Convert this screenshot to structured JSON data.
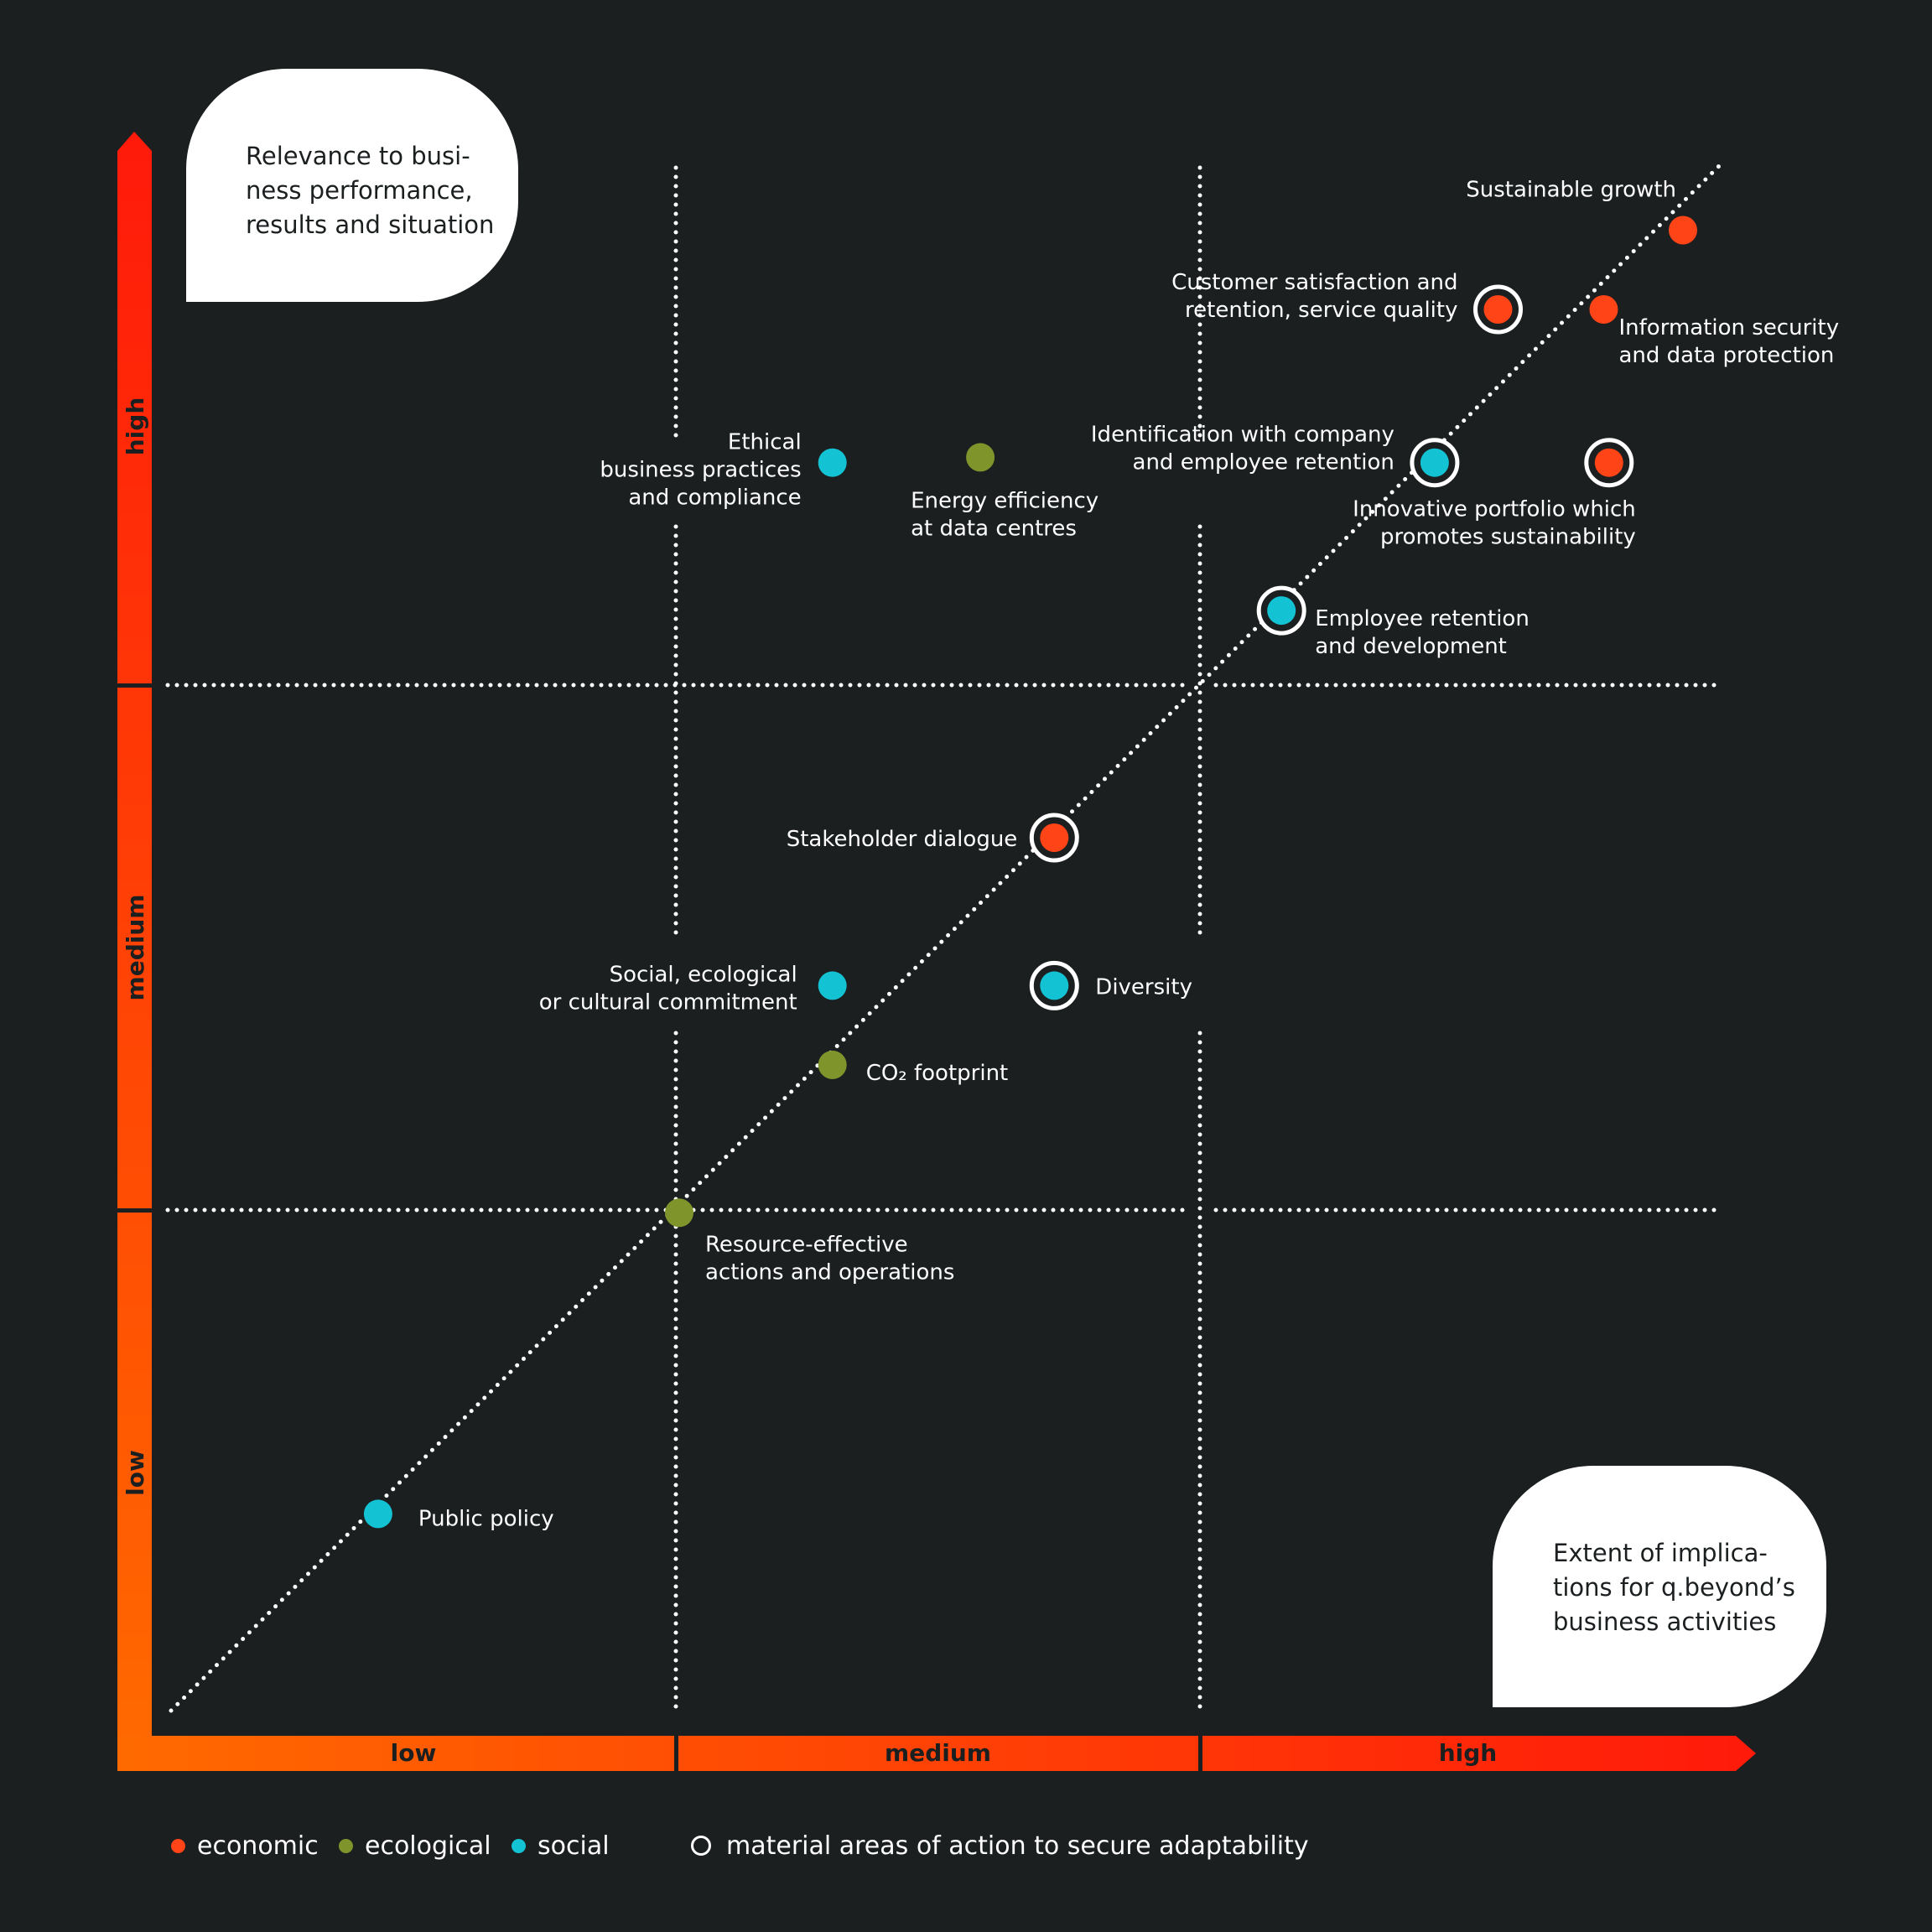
{
  "y_axis_title": [
    "Relevance to busi-",
    "ness performance,",
    "results and situation"
  ],
  "x_axis_title": [
    "Extent of implica-",
    "tions for q.beyond’s",
    "business activities"
  ],
  "colors": {
    "background": "#1b1f20",
    "economic": "#ff4417",
    "ecological": "#7f952b",
    "social": "#13c2d3",
    "axis_low": "#ff6a00",
    "axis_high": "#ff1a0a"
  },
  "legend": {
    "economic": "economic",
    "ecological": "ecological",
    "social": "social",
    "material": "material areas of action to secure adaptability"
  },
  "chart_data": {
    "type": "scatter",
    "x_categories": [
      "low",
      "medium",
      "high"
    ],
    "y_categories": [
      "low",
      "medium",
      "high"
    ],
    "xlim": [
      0,
      3
    ],
    "ylim": [
      0,
      3
    ],
    "grid": true,
    "diagonal_reference_line": true,
    "legend_position": "bottom",
    "series": [
      {
        "name": "economic",
        "category": "economic",
        "points": [
          {
            "label": [
              "Sustainable growth"
            ],
            "x": 2.9,
            "y": 2.85,
            "material": false
          },
          {
            "label": [
              "Customer satisfaction and",
              "retention, service quality"
            ],
            "x": 2.55,
            "y": 2.7,
            "material": true
          },
          {
            "label": [
              "Information security",
              "and data protection"
            ],
            "x": 2.75,
            "y": 2.7,
            "material": false
          },
          {
            "label": [
              "Innovative portfolio which",
              "promotes sustainability"
            ],
            "x": 2.76,
            "y": 2.41,
            "material": true
          },
          {
            "label": [
              "Stakeholder dialogue"
            ],
            "x": 1.71,
            "y": 1.7,
            "material": true
          }
        ]
      },
      {
        "name": "ecological",
        "category": "ecological",
        "points": [
          {
            "label": [
              "Energy efficiency",
              "at data centres"
            ],
            "x": 1.57,
            "y": 2.42,
            "material": false
          },
          {
            "label": [
              "CO₂ footprint"
            ],
            "x": 1.29,
            "y": 1.27,
            "material": false
          },
          {
            "label": [
              "Resource-effective",
              "actions and operations"
            ],
            "x": 1.0,
            "y": 0.99,
            "material": false
          }
        ]
      },
      {
        "name": "social",
        "category": "social",
        "points": [
          {
            "label": [
              "Ethical",
              "business practices",
              "and compliance"
            ],
            "x": 1.29,
            "y": 2.41,
            "material": false
          },
          {
            "label": [
              "Identification with company",
              "and employee retention"
            ],
            "x": 2.43,
            "y": 2.41,
            "material": true
          },
          {
            "label": [
              "Employee retention",
              "and development"
            ],
            "x": 2.14,
            "y": 2.13,
            "material": true
          },
          {
            "label": [
              "Social, ecological",
              "or cultural commitment"
            ],
            "x": 1.29,
            "y": 1.42,
            "material": false
          },
          {
            "label": [
              "Diversity"
            ],
            "x": 1.71,
            "y": 1.42,
            "material": true
          },
          {
            "label": [
              "Public policy"
            ],
            "x": 0.43,
            "y": 0.42,
            "material": false
          }
        ]
      }
    ]
  }
}
